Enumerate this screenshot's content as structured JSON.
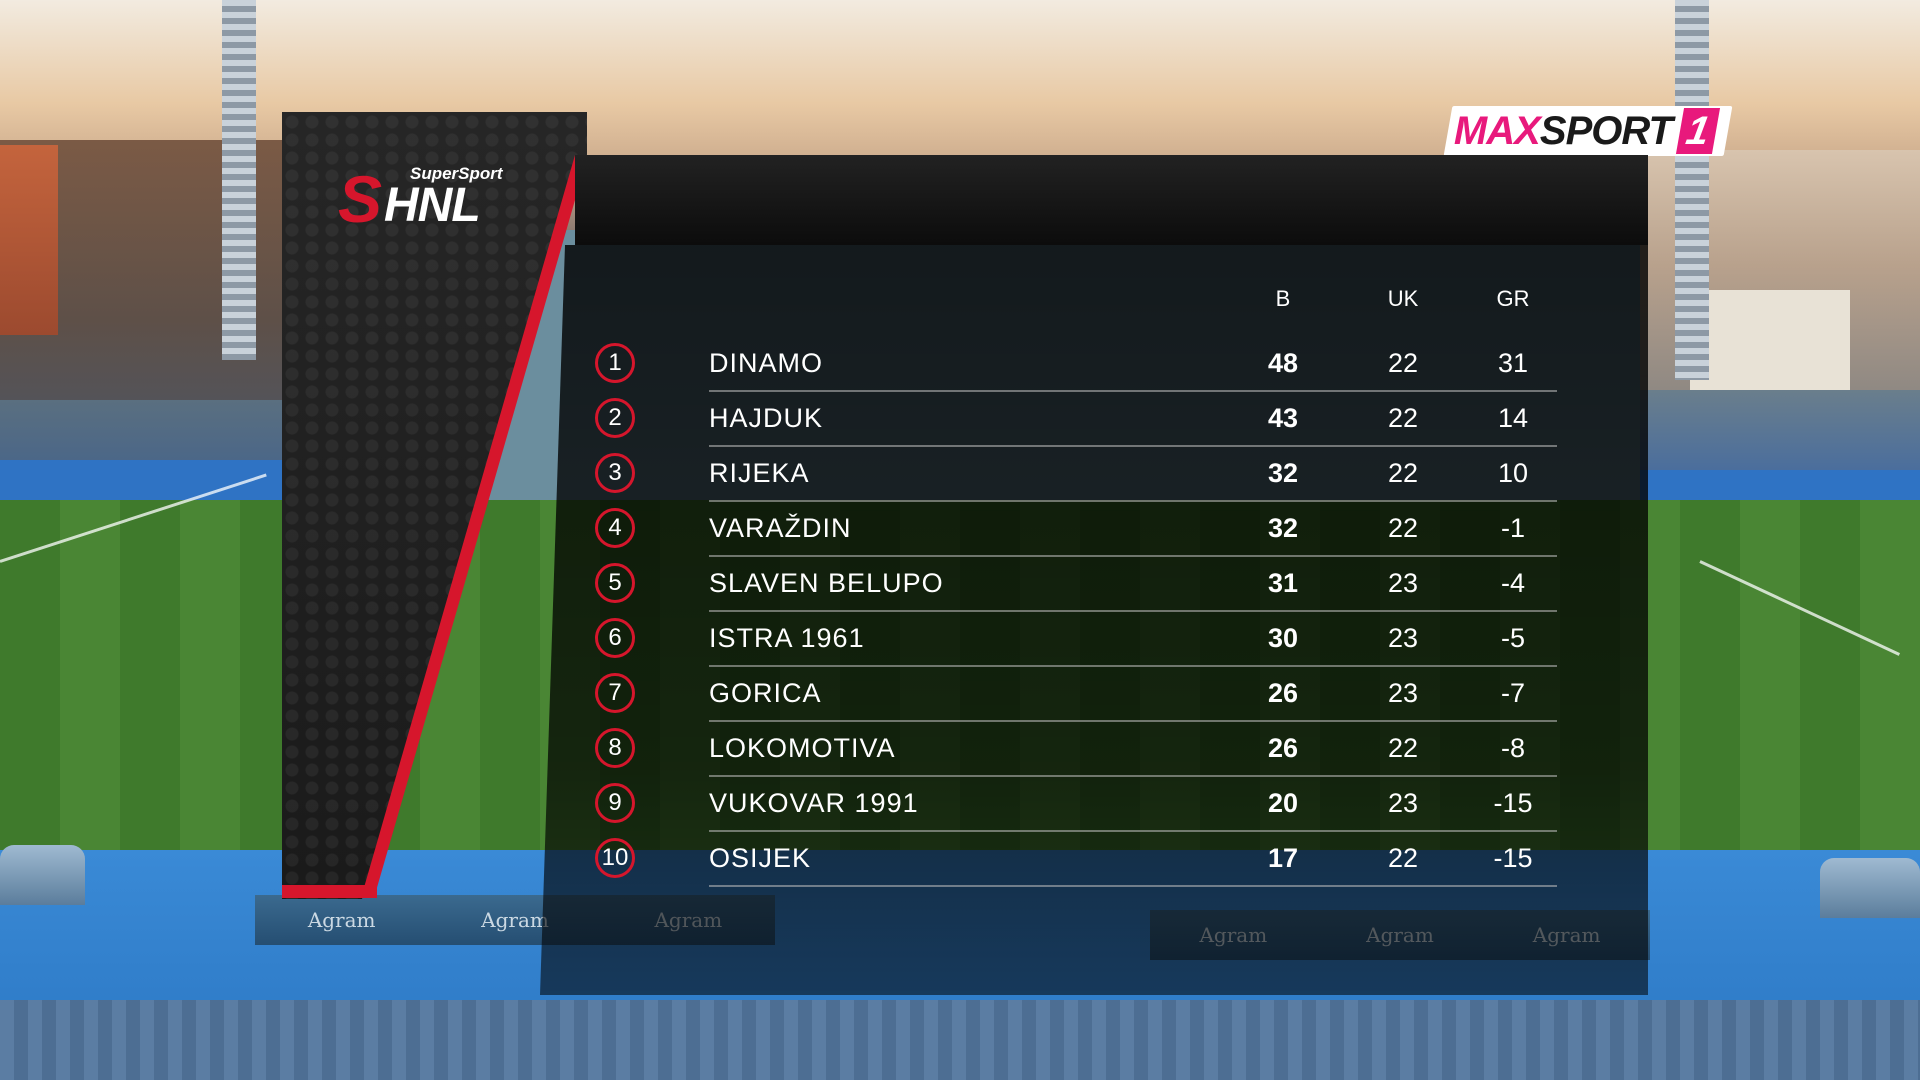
{
  "broadcaster": {
    "logo_part1": "MAX",
    "logo_part2": "SPORT",
    "logo_number": "1",
    "accent_color": "#e8197c"
  },
  "league": {
    "logo_letter": "S",
    "logo_name": "HNL",
    "sponsor": "SuperSport",
    "accent_color": "#d6162c"
  },
  "table": {
    "columns": {
      "points": "B",
      "played": "UK",
      "goal_diff": "GR"
    },
    "rows": [
      {
        "rank": "1",
        "team": "DINAMO",
        "points": "48",
        "played": "22",
        "goal_diff": "31"
      },
      {
        "rank": "2",
        "team": "HAJDUK",
        "points": "43",
        "played": "22",
        "goal_diff": "14"
      },
      {
        "rank": "3",
        "team": "RIJEKA",
        "points": "32",
        "played": "22",
        "goal_diff": "10"
      },
      {
        "rank": "4",
        "team": "VARAŽDIN",
        "points": "32",
        "played": "22",
        "goal_diff": "-1"
      },
      {
        "rank": "5",
        "team": "SLAVEN BELUPO",
        "points": "31",
        "played": "23",
        "goal_diff": "-4"
      },
      {
        "rank": "6",
        "team": "ISTRA 1961",
        "points": "30",
        "played": "23",
        "goal_diff": "-5"
      },
      {
        "rank": "7",
        "team": "GORICA",
        "points": "26",
        "played": "23",
        "goal_diff": "-7"
      },
      {
        "rank": "8",
        "team": "LOKOMOTIVA",
        "points": "26",
        "played": "22",
        "goal_diff": "-8"
      },
      {
        "rank": "9",
        "team": "VUKOVAR 1991",
        "points": "20",
        "played": "23",
        "goal_diff": "-15"
      },
      {
        "rank": "10",
        "team": "OSIJEK",
        "points": "17",
        "played": "22",
        "goal_diff": "-15"
      }
    ]
  },
  "stadium_ads": {
    "sponsor": "Agram"
  }
}
